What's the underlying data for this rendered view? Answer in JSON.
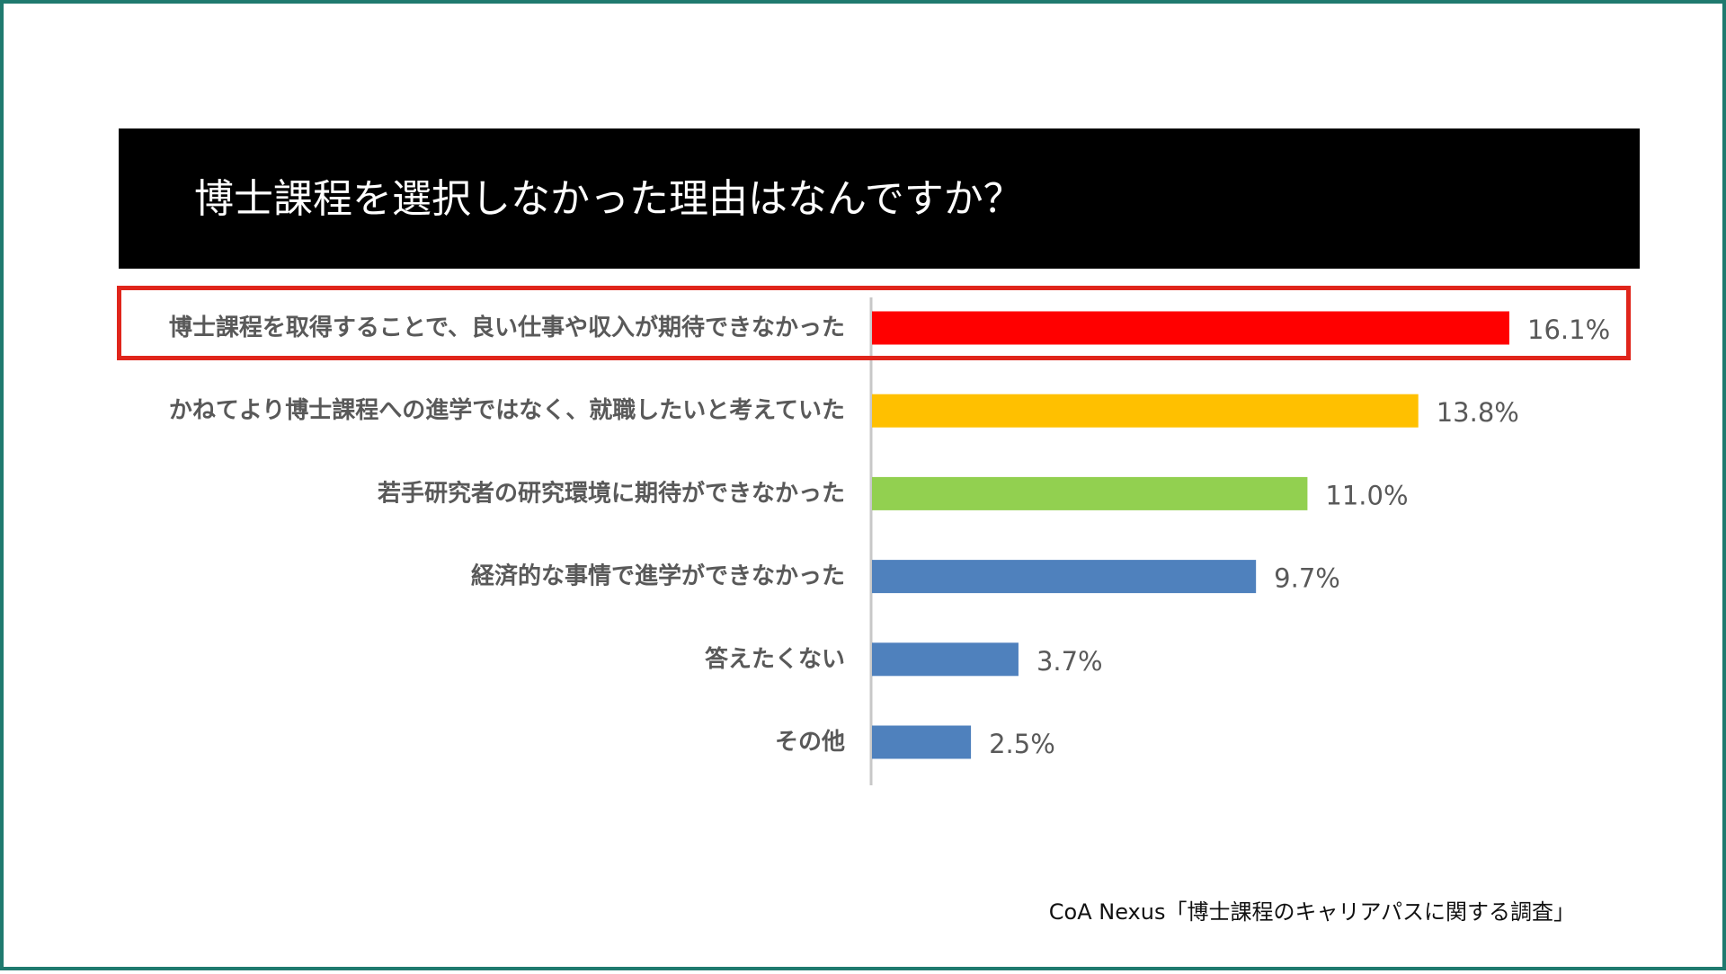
{
  "title": "博士課程を選択しなかった理由はなんですか？",
  "source": "CoA Nexus「博士課程のキャリアパスに関する調査」",
  "colors": {
    "frame": "#1f7a6f",
    "highlight_border": "#e0251b",
    "label_text": "#595959",
    "axis": "#c8c8c8"
  },
  "chart_data": {
    "type": "bar",
    "orientation": "horizontal",
    "categories": [
      "博士課程を取得することで、良い仕事や収入が期待できなかった",
      "かねてより博士課程への進学ではなく、就職したいと考えていた",
      "若手研究者の研究環境に期待ができなかった",
      "経済的な事情で進学ができなかった",
      "答えたくない",
      "その他"
    ],
    "values": [
      16.1,
      13.8,
      11.0,
      9.7,
      3.7,
      2.5
    ],
    "value_labels": [
      "16.1%",
      "13.8%",
      "11.0%",
      "9.7%",
      "3.7%",
      "2.5%"
    ],
    "bar_colors": [
      "#ff0000",
      "#ffc000",
      "#92d050",
      "#4f81bd",
      "#4f81bd",
      "#4f81bd"
    ],
    "highlighted_category": "博士課程を取得することで、良い仕事や収入が期待できなかった",
    "title": "",
    "xlabel": "",
    "ylabel": "",
    "grid": false,
    "legend": "none"
  }
}
